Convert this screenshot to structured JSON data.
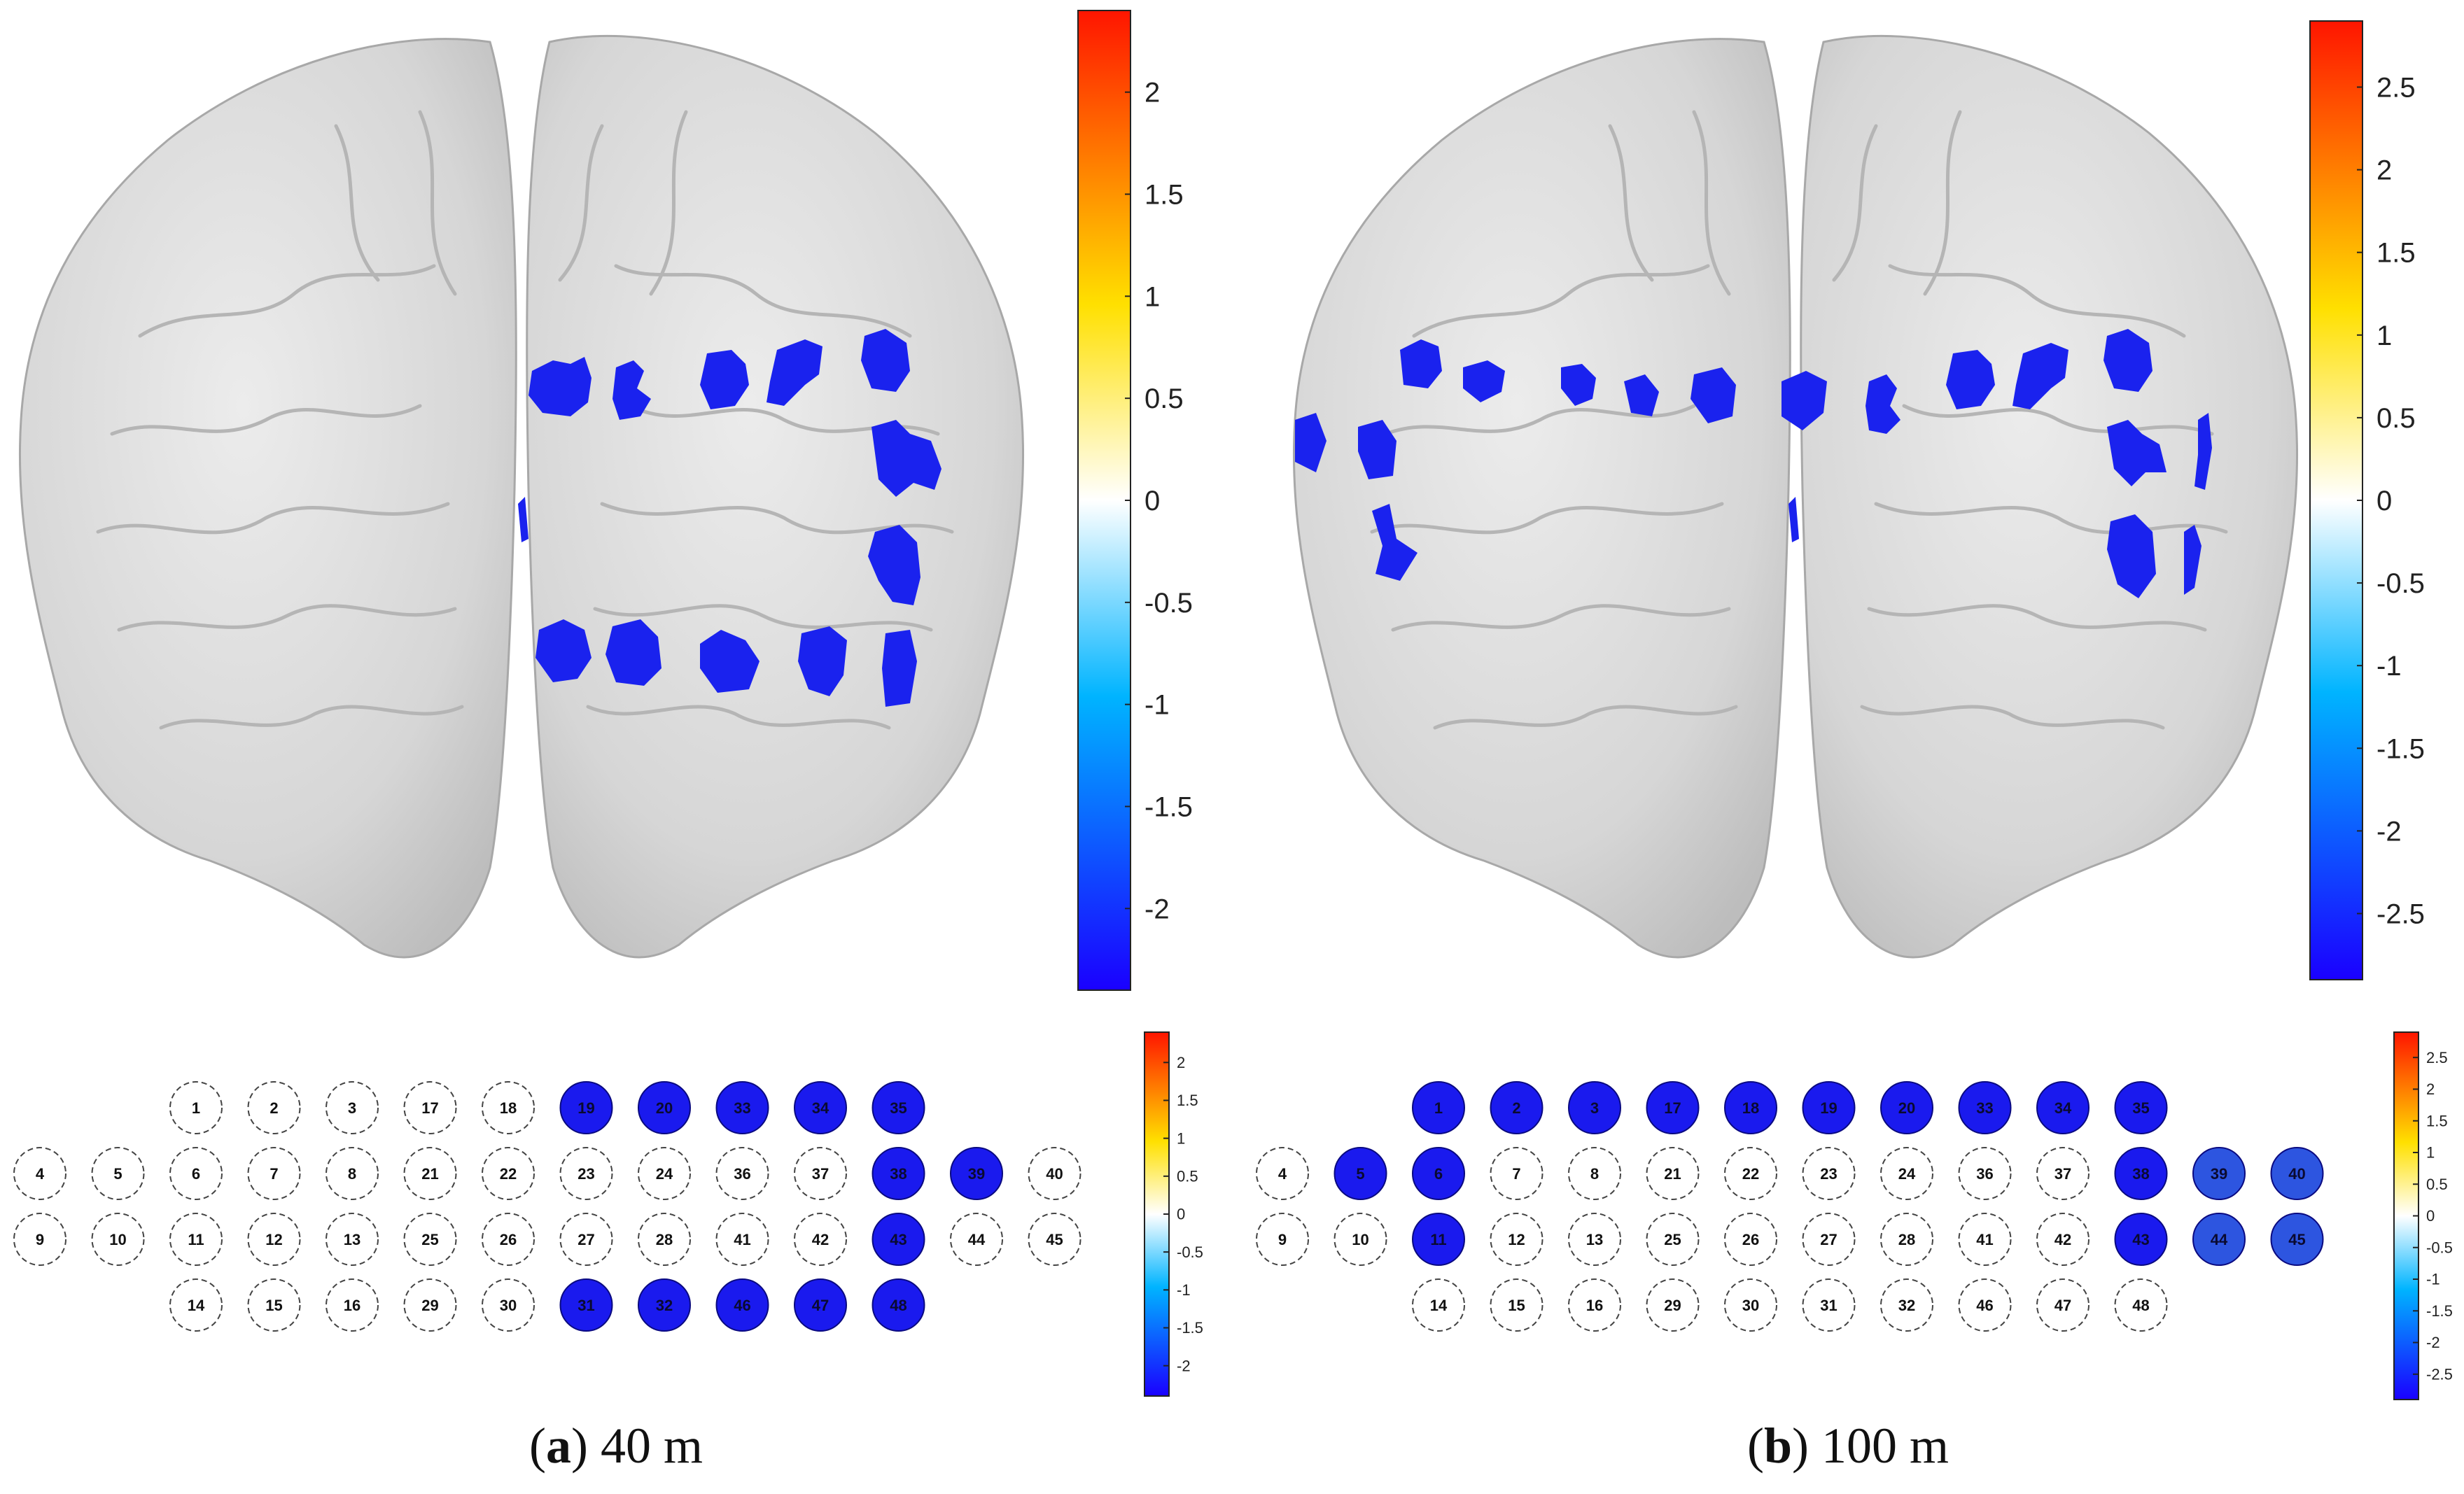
{
  "figure": {
    "panels": [
      {
        "id": "a",
        "caption_letter": "a",
        "caption_text": "40 m",
        "colorbar_ticks": [
          "2",
          "1.5",
          "1",
          "0.5",
          "0",
          "-0.5",
          "-1",
          "-1.5",
          "-2"
        ],
        "colorbar_limits": [
          -2.4,
          2.4
        ],
        "active_channels": [
          19,
          20,
          33,
          34,
          35,
          38,
          39,
          43,
          31,
          32,
          46,
          47,
          48
        ]
      },
      {
        "id": "b",
        "caption_letter": "b",
        "caption_text": "100 m",
        "colorbar_ticks": [
          "2.5",
          "2",
          "1.5",
          "1",
          "0.5",
          "0",
          "-0.5",
          "-1",
          "-1.5",
          "-2",
          "-2.5"
        ],
        "colorbar_limits": [
          -2.9,
          2.9
        ],
        "active_channels": [
          1,
          2,
          3,
          17,
          18,
          19,
          20,
          33,
          34,
          35,
          5,
          6,
          38,
          39,
          40,
          11,
          43,
          44,
          45
        ]
      }
    ],
    "channel_grid": [
      [
        null,
        null,
        1,
        2,
        3,
        17,
        18,
        19,
        20,
        33,
        34,
        35,
        null,
        null
      ],
      [
        4,
        5,
        6,
        7,
        8,
        21,
        22,
        23,
        24,
        36,
        37,
        38,
        39,
        40
      ],
      [
        9,
        10,
        11,
        12,
        13,
        25,
        26,
        27,
        28,
        41,
        42,
        43,
        44,
        45
      ],
      [
        null,
        null,
        14,
        15,
        16,
        29,
        30,
        31,
        32,
        46,
        47,
        48,
        null,
        null
      ]
    ],
    "colors": {
      "active_fill": "#1a1aee",
      "active_fill_light": "#2d55e0",
      "inactive_stroke": "#444444",
      "brain_fill": "#dedede",
      "brain_shadow": "#b9b9b9"
    }
  }
}
